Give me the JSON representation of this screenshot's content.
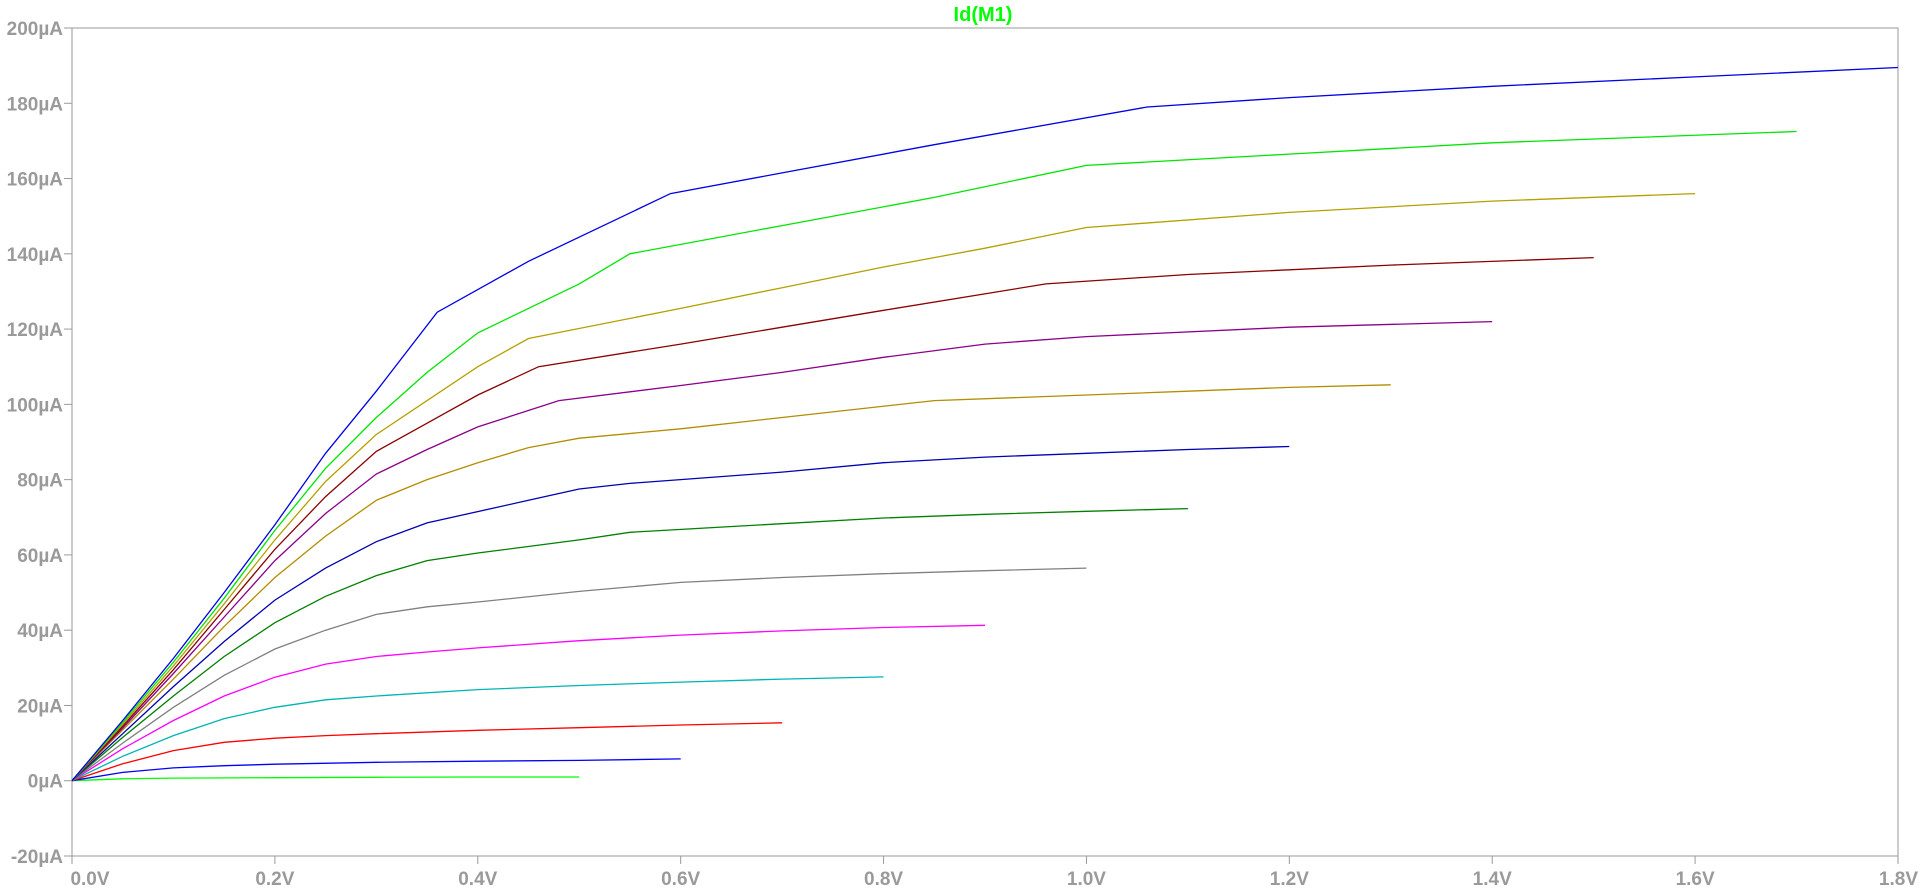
{
  "chart_data": {
    "type": "line",
    "title": "Id(M1)",
    "title_color": "#00ff00",
    "xlim": [
      0,
      1.8
    ],
    "ylim": [
      -20,
      200
    ],
    "x_ticks": [
      0,
      0.2,
      0.4,
      0.6,
      0.8,
      1.0,
      1.2,
      1.4,
      1.6,
      1.8
    ],
    "x_tick_labels": [
      "0.0V",
      "0.2V",
      "0.4V",
      "0.6V",
      "0.8V",
      "1.0V",
      "1.2V",
      "1.4V",
      "1.6V",
      "1.8V"
    ],
    "y_ticks": [
      -20,
      0,
      20,
      40,
      60,
      80,
      100,
      120,
      140,
      160,
      180,
      200
    ],
    "y_tick_labels": [
      "-20µA",
      "0µA",
      "20µA",
      "40µA",
      "60µA",
      "80µA",
      "100µA",
      "120µA",
      "140µA",
      "160µA",
      "180µA",
      "200µA"
    ],
    "grid": false,
    "series": [
      {
        "color": "#00ff00",
        "x": [
          0,
          0.05,
          0.1,
          0.2,
          0.3,
          0.4,
          0.5
        ],
        "y": [
          0,
          0.5,
          0.7,
          0.8,
          0.9,
          1.0,
          1.0
        ]
      },
      {
        "color": "#0000ff",
        "x": [
          0,
          0.05,
          0.1,
          0.15,
          0.2,
          0.3,
          0.4,
          0.5,
          0.6
        ],
        "y": [
          0,
          2.2,
          3.4,
          4.0,
          4.4,
          4.9,
          5.2,
          5.4,
          5.8
        ]
      },
      {
        "color": "#ff0000",
        "x": [
          0,
          0.05,
          0.1,
          0.15,
          0.2,
          0.25,
          0.3,
          0.4,
          0.5,
          0.6,
          0.7
        ],
        "y": [
          0,
          4.5,
          8.0,
          10.2,
          11.3,
          12.0,
          12.5,
          13.4,
          14.1,
          14.8,
          15.4
        ]
      },
      {
        "color": "#00b4b4",
        "x": [
          0,
          0.05,
          0.1,
          0.15,
          0.2,
          0.25,
          0.3,
          0.4,
          0.5,
          0.6,
          0.7,
          0.8
        ],
        "y": [
          0,
          6.5,
          12.0,
          16.5,
          19.5,
          21.5,
          22.5,
          24.2,
          25.3,
          26.2,
          27.0,
          27.6
        ]
      },
      {
        "color": "#ff00ff",
        "x": [
          0,
          0.05,
          0.1,
          0.15,
          0.2,
          0.25,
          0.3,
          0.35,
          0.4,
          0.5,
          0.6,
          0.7,
          0.8,
          0.9
        ],
        "y": [
          0,
          8.5,
          16.0,
          22.5,
          27.5,
          31.0,
          33.0,
          34.2,
          35.3,
          37.2,
          38.7,
          39.8,
          40.7,
          41.3
        ]
      },
      {
        "color": "#808080",
        "x": [
          0,
          0.05,
          0.1,
          0.15,
          0.2,
          0.25,
          0.3,
          0.35,
          0.4,
          0.5,
          0.6,
          0.7,
          0.8,
          0.9,
          1.0
        ],
        "y": [
          0,
          10.0,
          19.5,
          28.0,
          35.0,
          40.0,
          44.2,
          46.2,
          47.5,
          50.3,
          52.7,
          54.0,
          55.0,
          55.8,
          56.5
        ]
      },
      {
        "color": "#008000",
        "x": [
          0,
          0.05,
          0.1,
          0.15,
          0.2,
          0.25,
          0.3,
          0.35,
          0.4,
          0.5,
          0.55,
          0.7,
          0.8,
          0.9,
          1.0,
          1.1
        ],
        "y": [
          0,
          11.5,
          22.5,
          33.0,
          42.0,
          49.0,
          54.5,
          58.5,
          60.5,
          64.0,
          66.0,
          68.3,
          69.8,
          70.8,
          71.6,
          72.3
        ]
      },
      {
        "color": "#0000b4",
        "x": [
          0,
          0.05,
          0.1,
          0.15,
          0.2,
          0.25,
          0.3,
          0.35,
          0.45,
          0.5,
          0.55,
          0.7,
          0.8,
          0.9,
          1.0,
          1.1,
          1.2
        ],
        "y": [
          0,
          12.5,
          25.0,
          37.0,
          48.0,
          56.5,
          63.5,
          68.5,
          74.5,
          77.5,
          79.0,
          82.0,
          84.5,
          86.0,
          87.0,
          88.0,
          88.8
        ]
      },
      {
        "color": "#b48c00",
        "x": [
          0,
          0.05,
          0.1,
          0.15,
          0.2,
          0.25,
          0.3,
          0.35,
          0.4,
          0.45,
          0.5,
          0.6,
          0.7,
          0.85,
          1.0,
          1.1,
          1.2,
          1.3
        ],
        "y": [
          0,
          13.5,
          27.0,
          41.0,
          54.0,
          65.0,
          74.5,
          80.0,
          84.5,
          88.5,
          91.0,
          93.5,
          96.5,
          101.0,
          102.5,
          103.5,
          104.5,
          105.2
        ]
      },
      {
        "color": "#8b008b",
        "x": [
          0,
          0.05,
          0.1,
          0.15,
          0.2,
          0.25,
          0.3,
          0.35,
          0.4,
          0.48,
          0.6,
          0.7,
          0.8,
          0.9,
          1.0,
          1.2,
          1.4
        ],
        "y": [
          0,
          14.0,
          28.5,
          43.5,
          58.5,
          71.0,
          81.5,
          88.0,
          94.0,
          101.0,
          105.0,
          108.5,
          112.5,
          116.0,
          118.0,
          120.5,
          122.0
        ]
      },
      {
        "color": "#8b0000",
        "x": [
          0,
          0.05,
          0.1,
          0.15,
          0.2,
          0.25,
          0.3,
          0.35,
          0.4,
          0.46,
          0.6,
          0.7,
          0.8,
          0.96,
          1.1,
          1.3,
          1.5
        ],
        "y": [
          0,
          14.5,
          29.5,
          45.5,
          61.5,
          75.5,
          87.5,
          95.0,
          102.5,
          110.0,
          116.0,
          120.5,
          125.0,
          132.0,
          134.5,
          137.0,
          139.0
        ]
      },
      {
        "color": "#b4a000",
        "x": [
          0,
          0.05,
          0.1,
          0.15,
          0.2,
          0.25,
          0.3,
          0.35,
          0.4,
          0.45,
          0.6,
          0.7,
          0.8,
          0.9,
          1.0,
          1.2,
          1.4,
          1.6
        ],
        "y": [
          0,
          15.0,
          30.5,
          47.0,
          64.0,
          79.5,
          92.0,
          101.0,
          110.0,
          117.5,
          125.5,
          131.0,
          136.5,
          141.5,
          147.0,
          151.0,
          154.0,
          156.0
        ]
      },
      {
        "color": "#00e600",
        "x": [
          0,
          0.05,
          0.1,
          0.15,
          0.2,
          0.25,
          0.3,
          0.35,
          0.4,
          0.5,
          0.55,
          0.7,
          0.85,
          1.0,
          1.2,
          1.4,
          1.7
        ],
        "y": [
          0,
          15.5,
          31.5,
          48.5,
          66.5,
          83.0,
          96.5,
          108.5,
          119.0,
          132.0,
          140.0,
          147.5,
          155.0,
          163.5,
          166.5,
          169.5,
          172.5
        ]
      },
      {
        "color": "#0000e6",
        "x": [
          0,
          0.05,
          0.1,
          0.15,
          0.2,
          0.25,
          0.3,
          0.36,
          0.45,
          0.59,
          0.7,
          0.85,
          1.06,
          1.2,
          1.4,
          1.6,
          1.8
        ],
        "y": [
          0,
          16.0,
          32.5,
          50.0,
          68.0,
          87.0,
          103.5,
          124.5,
          138.0,
          156.0,
          161.5,
          169.0,
          179.0,
          181.5,
          184.5,
          187.0,
          189.5
        ]
      }
    ]
  }
}
